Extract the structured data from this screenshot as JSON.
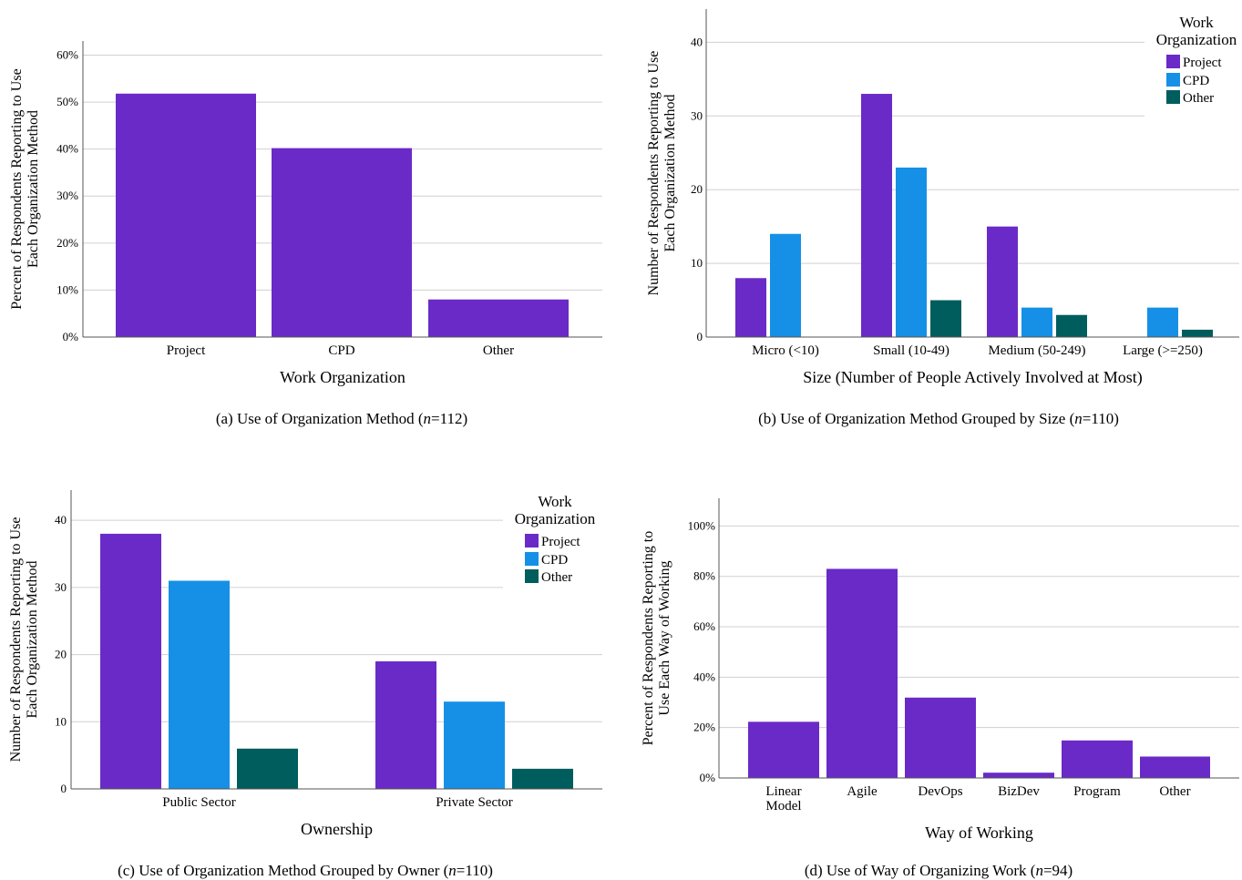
{
  "colors": {
    "project": "#6a2ac7",
    "cpd": "#1590e6",
    "other": "#005d5d",
    "grid": "#d0d0d0",
    "axis": "#555555"
  },
  "captions": [
    {
      "prefix": "(a) Use of Organization Method (",
      "n": "n",
      "suffix": "=112)"
    },
    {
      "prefix": "(b) Use of Organization Method Grouped by Size (",
      "n": "n",
      "suffix": "=110)"
    },
    {
      "prefix": "(c) Use of Organization Method Grouped by Owner (",
      "n": "n",
      "suffix": "=110)"
    },
    {
      "prefix": "(d) Use of Way of Organizing Work (",
      "n": "n",
      "suffix": "=94)"
    }
  ],
  "chart_data": [
    {
      "type": "bar",
      "categories": [
        "Project",
        "CPD",
        "Other"
      ],
      "values": [
        51.8,
        40.2,
        8.0
      ],
      "xlabel": "Work Organization",
      "ylabel_lines": [
        "Percent of Respondents Reporting to Use",
        "Each Organization Method"
      ],
      "ylim": [
        0,
        63
      ],
      "yticks": [
        0,
        10,
        20,
        30,
        40,
        50,
        60
      ],
      "ytick_labels": [
        "0%",
        "10%",
        "20%",
        "30%",
        "40%",
        "50%",
        "60%"
      ],
      "grid": true
    },
    {
      "type": "bar",
      "categories": [
        "Micro (<10)",
        "Small (10-49)",
        "Medium (50-249)",
        "Large (>=250)"
      ],
      "series": [
        {
          "name": "Project",
          "values": [
            8,
            33,
            15,
            0
          ]
        },
        {
          "name": "CPD",
          "values": [
            14,
            23,
            4,
            4
          ]
        },
        {
          "name": "Other",
          "values": [
            0,
            5,
            3,
            1
          ]
        }
      ],
      "xlabel": "Size (Number of People Actively Involved at Most)",
      "ylabel_lines": [
        "Number of Respondents Reporting to Use",
        "Each Organization Method"
      ],
      "ylim": [
        0,
        44.5
      ],
      "yticks": [
        0,
        10,
        20,
        30,
        40
      ],
      "ytick_labels": [
        "0",
        "10",
        "20",
        "30",
        "40"
      ],
      "legend_title_lines": [
        "Work",
        "Organization"
      ],
      "legend_position": "top-right",
      "grid": true
    },
    {
      "type": "bar",
      "categories": [
        "Public Sector",
        "Private Sector"
      ],
      "series": [
        {
          "name": "Project",
          "values": [
            38,
            19
          ]
        },
        {
          "name": "CPD",
          "values": [
            31,
            13
          ]
        },
        {
          "name": "Other",
          "values": [
            6,
            3
          ]
        }
      ],
      "xlabel": "Ownership",
      "ylabel_lines": [
        "Number of Respondents Reporting to Use",
        "Each Organization Method"
      ],
      "ylim": [
        0,
        44.5
      ],
      "yticks": [
        0,
        10,
        20,
        30,
        40
      ],
      "ytick_labels": [
        "0",
        "10",
        "20",
        "30",
        "40"
      ],
      "legend_title_lines": [
        "Work",
        "Organization"
      ],
      "legend_position": "top-right",
      "grid": true
    },
    {
      "type": "bar",
      "categories": [
        "Linear Model",
        "Agile",
        "DevOps",
        "BizDev",
        "Program",
        "Other"
      ],
      "category_lines": [
        [
          "Linear",
          "Model"
        ],
        [
          "Agile"
        ],
        [
          "DevOps"
        ],
        [
          "BizDev"
        ],
        [
          "Program"
        ],
        [
          "Other"
        ]
      ],
      "values": [
        22.3,
        83.0,
        31.9,
        2.1,
        14.9,
        8.5
      ],
      "xlabel": "Way of Working",
      "ylabel_lines": [
        "Percent of Respondents Reporting to",
        "Use Each Way of Working"
      ],
      "ylim": [
        0,
        111
      ],
      "yticks": [
        0,
        20,
        40,
        60,
        80,
        100
      ],
      "ytick_labels": [
        "0%",
        "20%",
        "40%",
        "60%",
        "80%",
        "100%"
      ],
      "grid": true
    }
  ]
}
